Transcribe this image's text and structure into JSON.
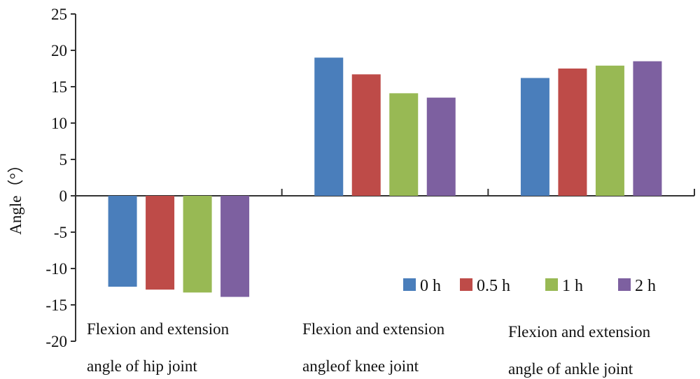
{
  "chart_data": {
    "type": "bar",
    "title": "",
    "xlabel": "",
    "ylabel": "Angle（°）",
    "ylim": [
      -20,
      25
    ],
    "yticks": [
      -20,
      -15,
      -10,
      -5,
      0,
      5,
      10,
      15,
      20,
      25
    ],
    "grid": false,
    "legend_position": "bottom-right",
    "categories": [
      [
        "Flexion and extension",
        "angle of hip joint"
      ],
      [
        "Flexion and extension",
        "angleof knee joint"
      ],
      [
        "Flexion and extension",
        "angle of ankle joint"
      ]
    ],
    "series": [
      {
        "name": "0 h",
        "color": "#4A7EBB",
        "values": [
          -12.5,
          19.0,
          16.2
        ]
      },
      {
        "name": "0.5 h",
        "color": "#BE4B48",
        "values": [
          -12.9,
          16.7,
          17.5
        ]
      },
      {
        "name": "1 h",
        "color": "#98B954",
        "values": [
          -13.3,
          14.1,
          17.9
        ]
      },
      {
        "name": "2 h",
        "color": "#7D60A0",
        "values": [
          -13.9,
          13.5,
          18.5
        ]
      }
    ]
  }
}
